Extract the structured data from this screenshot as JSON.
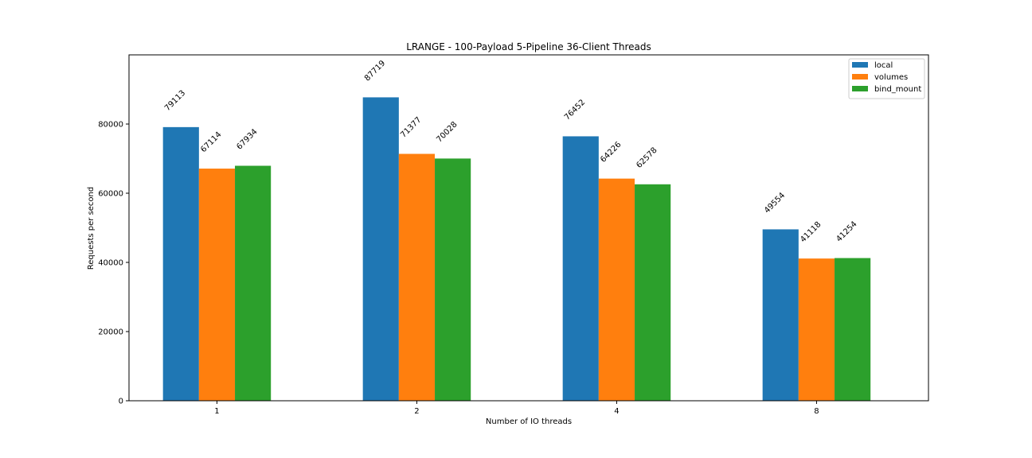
{
  "chart_data": {
    "type": "bar",
    "title": "LRANGE - 100-Payload 5-Pipeline 36-Client Threads",
    "xlabel": "Number of IO threads",
    "ylabel": "Requests per second",
    "categories": [
      "1",
      "2",
      "4",
      "8"
    ],
    "series": [
      {
        "name": "local",
        "color": "#1f77b4",
        "values": [
          79113,
          87719,
          76452,
          49554
        ]
      },
      {
        "name": "volumes",
        "color": "#ff7f0e",
        "values": [
          67114,
          71377,
          64226,
          41118
        ]
      },
      {
        "name": "bind_mount",
        "color": "#2ca02c",
        "values": [
          67934,
          70028,
          62578,
          41254
        ]
      }
    ],
    "ylim": [
      0,
      100000
    ],
    "yticks": [
      0,
      20000,
      40000,
      60000,
      80000
    ],
    "grid": false,
    "legend": "top-right"
  }
}
